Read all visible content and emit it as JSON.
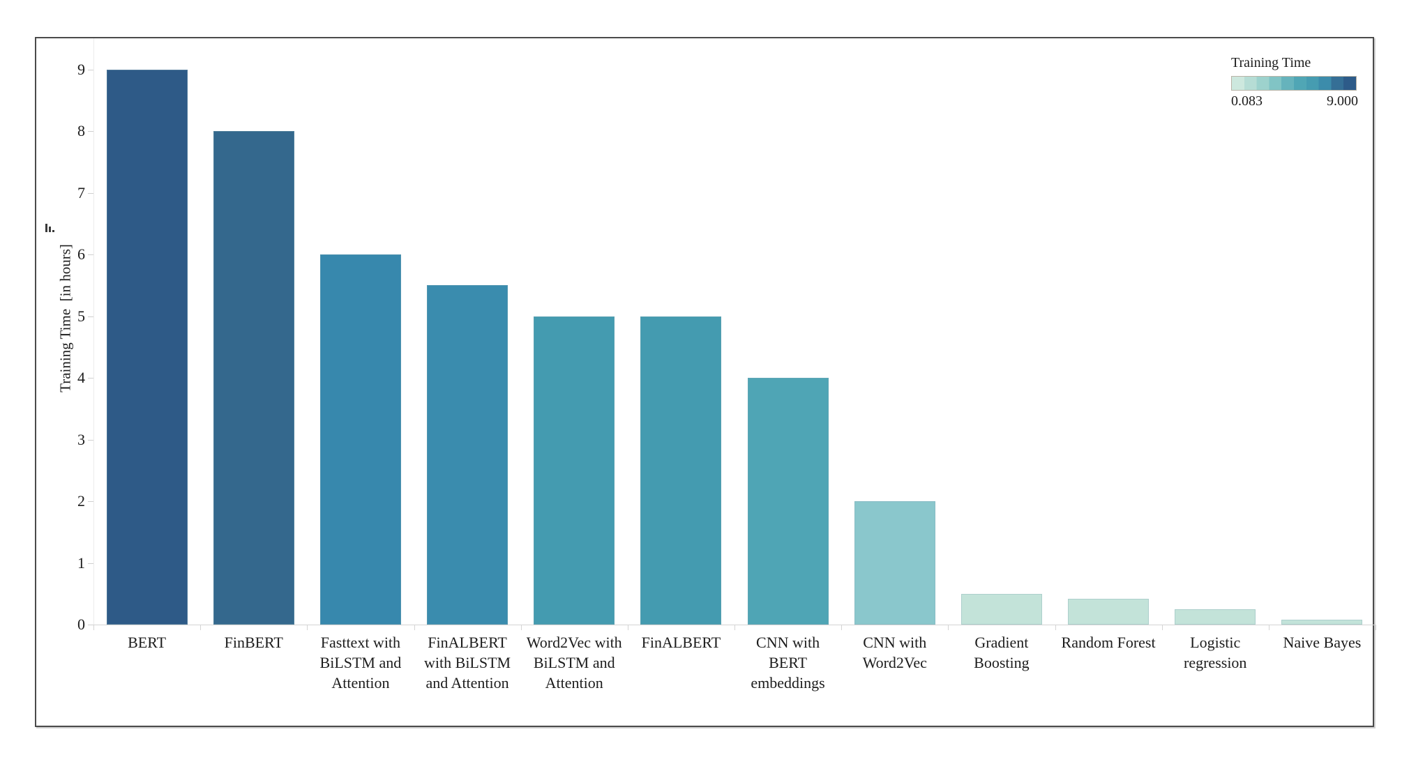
{
  "chart_data": {
    "type": "bar",
    "title": "",
    "ylabel": "Training Time  [in hours]",
    "xlabel": "",
    "categories": [
      "BERT",
      "FinBERT",
      "Fasttext with BiLSTM and Attention",
      "FinALBERT with BiLSTM and Attention",
      "Word2Vec with BiLSTM and Attention",
      "FinALBERT",
      "CNN with BERT embeddings",
      "CNN with Word2Vec",
      "Gradient Boosting",
      "Random Forest",
      "Logistic regression",
      "Naive Bayes"
    ],
    "category_slugs": [
      "bert",
      "finbert",
      "fasttext-bilstm-attention",
      "finalbert-bilstm-attention",
      "word2vec-bilstm-attention",
      "finalbert",
      "cnn-bert-embeddings",
      "cnn-word2vec",
      "gradient-boosting",
      "random-forest",
      "logistic-regression",
      "naive-bayes"
    ],
    "values": [
      9,
      8,
      6,
      5.5,
      5,
      5,
      4,
      2,
      0.5,
      0.417,
      0.25,
      0.083
    ],
    "bar_colors": [
      "#2e5a87",
      "#34688d",
      "#3788ad",
      "#3a8cae",
      "#449bb0",
      "#449bb0",
      "#4fa5b5",
      "#8ac7cc",
      "#c3e3d9",
      "#c3e3d9",
      "#c3e3d9",
      "#c3e3d9"
    ],
    "yticks": [
      "0",
      "1",
      "2",
      "3",
      "4",
      "5",
      "6",
      "7",
      "8",
      "9"
    ],
    "ylim": [
      0,
      9.5
    ],
    "grid": false,
    "legend_position": "top-right",
    "legend": {
      "title": "Training Time",
      "min_label": "0.083",
      "max_label": "9.000",
      "ramp_colors": [
        "#cde8de",
        "#b6ddd5",
        "#9dd2cd",
        "#81c4c5",
        "#66b3bc",
        "#50a6b5",
        "#469cb1",
        "#3c8cab",
        "#356f96",
        "#2d5b89"
      ]
    }
  }
}
